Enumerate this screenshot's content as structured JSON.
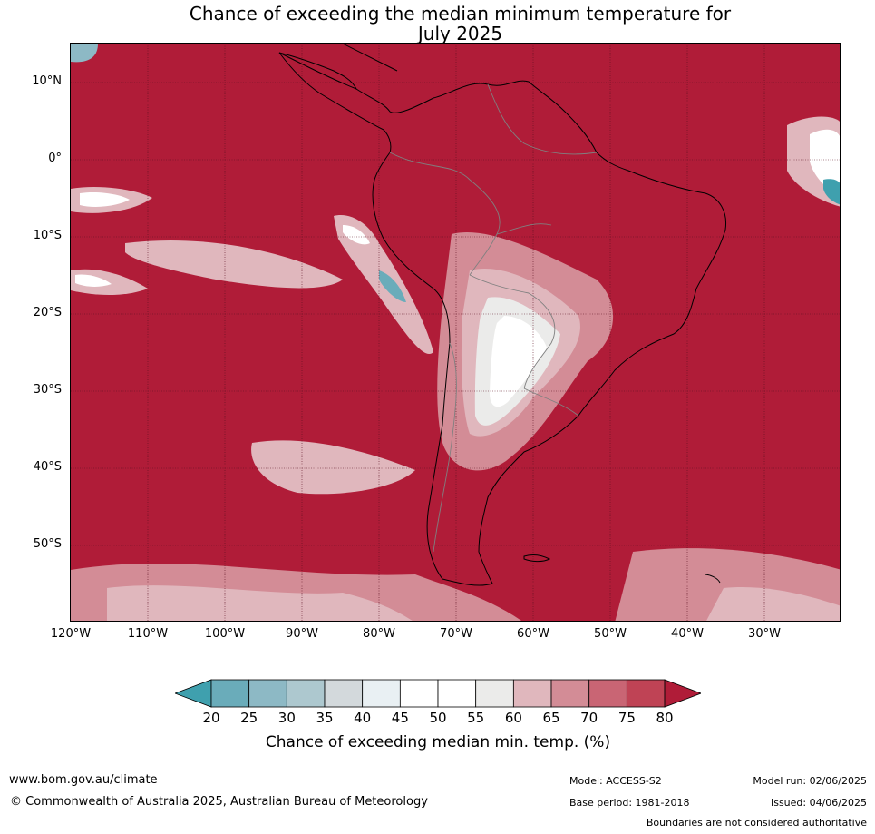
{
  "title": {
    "line1": "Chance of exceeding the median minimum temperature for",
    "line2": "July 2025"
  },
  "map": {
    "region": "South America",
    "latitude_labels": [
      "10°N",
      "0°",
      "10°S",
      "20°S",
      "30°S",
      "40°S",
      "50°S"
    ],
    "longitude_labels": [
      "120°W",
      "110°W",
      "100°W",
      "90°W",
      "80°W",
      "70°W",
      "60°W",
      "50°W",
      "40°W",
      "30°W"
    ],
    "dominant_category": "80",
    "colors": {
      "ocean_high": "#b01c38",
      "land_outline": "#000000",
      "country_borders": "#808080",
      "gridlines": "#5a1020"
    }
  },
  "colorbar": {
    "ticks": [
      "20",
      "25",
      "30",
      "35",
      "40",
      "45",
      "50",
      "55",
      "60",
      "65",
      "70",
      "75",
      "80"
    ],
    "colors": [
      "#3fa0ae",
      "#6aacba",
      "#8db9c5",
      "#adc8cf",
      "#d3d9dc",
      "#e9f0f3",
      "#ffffff",
      "#ffffff",
      "#ebebea",
      "#e0b7bd",
      "#d38c96",
      "#c96574",
      "#bf4355",
      "#b01c38"
    ],
    "label": "Chance of exceeding median min. temp. (%)"
  },
  "footer": {
    "website": "www.bom.gov.au/climate",
    "copyright": "© Commonwealth of Australia 2025, Australian Bureau of Meteorology",
    "model": "Model: ACCESS-S2",
    "base_period": "Base period: 1981-2018",
    "model_run": "Model run: 02/06/2025",
    "issued": "Issued: 04/06/2025",
    "disclaimer": "Boundaries are not considered authoritative"
  }
}
